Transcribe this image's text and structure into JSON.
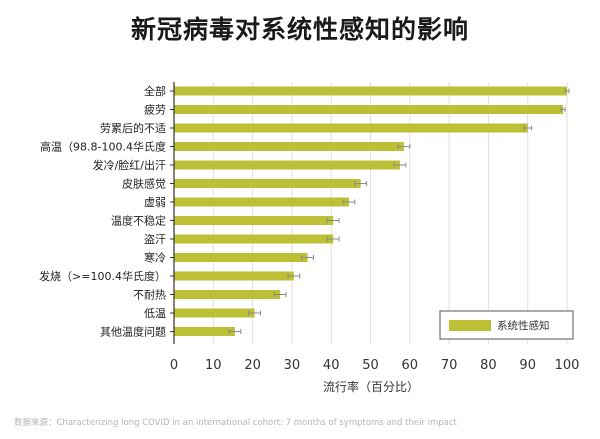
{
  "chart_data": {
    "type": "bar",
    "orientation": "horizontal",
    "title": "新冠病毒对系统性感知的影响",
    "categories": [
      "全部",
      "疲劳",
      "劳累后的不适",
      "高温（98.8-100.4华氏度",
      "发冷/脸红/出汗",
      "皮肤感觉",
      "虚弱",
      "温度不稳定",
      "盗汗",
      "寒冷",
      "发烧（>=100.4华氏度）",
      "不耐热",
      "低温",
      "其他温度问题"
    ],
    "series": [
      {
        "name": "系统性感知",
        "values": [
          100,
          99,
          90,
          58.5,
          57.5,
          47.5,
          44.5,
          40.5,
          40.5,
          34,
          30.5,
          27,
          20.5,
          15.5
        ],
        "errors": [
          0.5,
          0.5,
          1,
          1.5,
          1.5,
          1.5,
          1.5,
          1.5,
          1.5,
          1.5,
          1.5,
          1.5,
          1.5,
          1.5
        ]
      }
    ],
    "xlabel": "流行率（百分比）",
    "ylabel": "",
    "xlim": [
      0,
      100
    ],
    "xticks": [
      0,
      10,
      20,
      30,
      40,
      50,
      60,
      70,
      80,
      90,
      100
    ],
    "grid": true,
    "legend_position": "bottom-right",
    "colors": {
      "bar": "#bdbf34",
      "error": "#8a8a8a",
      "grid": "#e0e0e0",
      "axis": "#333333"
    }
  },
  "source": "数据来源：Characterizing long COVID in an international cohort: 7 months of symptoms and their impact"
}
